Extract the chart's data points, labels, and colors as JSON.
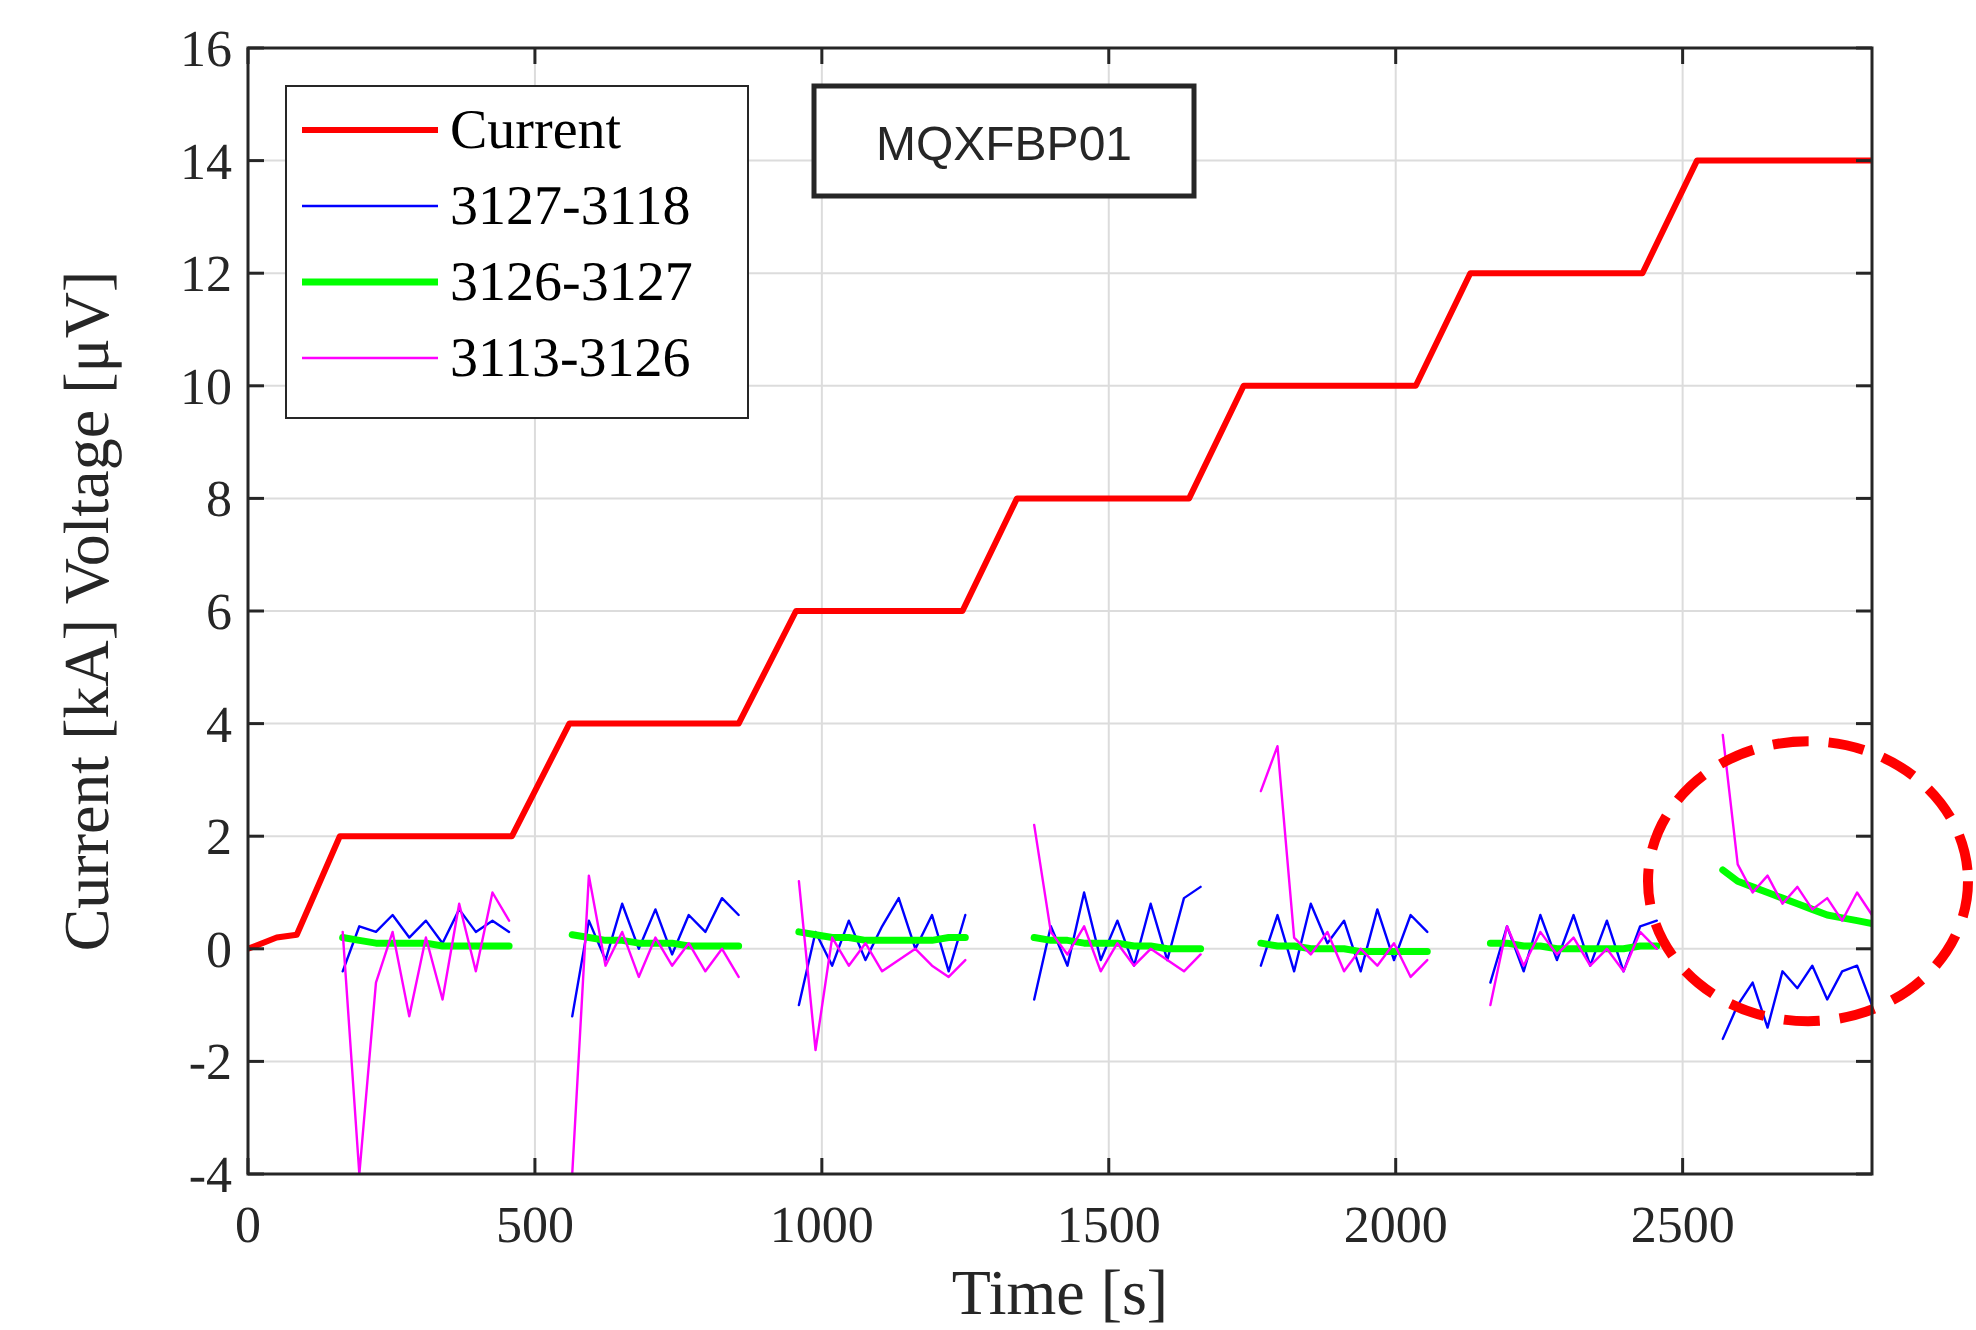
{
  "chart_data": {
    "type": "line",
    "xlabel": "Time [s]",
    "ylabel": "Current [kA] Voltage [μV]",
    "annotations": [
      "MQXFBP01"
    ],
    "xlim": [
      0,
      2830
    ],
    "ylim": [
      -4,
      16
    ],
    "xticks": [
      0,
      500,
      1000,
      1500,
      2000,
      2500
    ],
    "yticks": [
      -4,
      -2,
      0,
      2,
      4,
      6,
      8,
      10,
      12,
      14,
      16
    ],
    "grid": true,
    "legend": "top left",
    "x": [
      165,
      194,
      223,
      252,
      281,
      310,
      339,
      368,
      397,
      426,
      455,
      510,
      565,
      594,
      623,
      652,
      681,
      710,
      739,
      768,
      797,
      826,
      855,
      908,
      960,
      989,
      1018,
      1047,
      1076,
      1105,
      1134,
      1163,
      1192,
      1221,
      1250,
      1310,
      1370,
      1399,
      1428,
      1457,
      1486,
      1515,
      1544,
      1573,
      1602,
      1631,
      1660,
      1712,
      1765,
      1794,
      1823,
      1852,
      1881,
      1910,
      1939,
      1968,
      1997,
      2026,
      2055,
      2110,
      2165,
      2194,
      2223,
      2252,
      2281,
      2310,
      2339,
      2368,
      2397,
      2426,
      2455,
      2512,
      2570,
      2596,
      2622,
      2648,
      2674,
      2700,
      2726,
      2752,
      2778,
      2804,
      2830
    ],
    "series": [
      {
        "name": "Current",
        "color": "#ff0000",
        "x": [
          0,
          50,
          85,
          160,
          460,
          560,
          855,
          955,
          1245,
          1340,
          1640,
          1735,
          2035,
          2130,
          2430,
          2525,
          2830
        ],
        "values": [
          0,
          0.2,
          0.25,
          2,
          2,
          4,
          4,
          6,
          6,
          8,
          8,
          10,
          10,
          12,
          12,
          14,
          14
        ]
      },
      {
        "name": "3127-3118",
        "color": "#0000ff",
        "values": [
          -0.4,
          0.4,
          0.3,
          0.6,
          0.2,
          0.5,
          0.1,
          0.7,
          0.3,
          0.5,
          0.3,
          null,
          -1.2,
          0.5,
          -0.2,
          0.8,
          0.0,
          0.7,
          -0.1,
          0.6,
          0.3,
          0.9,
          0.6,
          null,
          -1.0,
          0.3,
          -0.3,
          0.5,
          -0.2,
          0.4,
          0.9,
          0.0,
          0.6,
          -0.4,
          0.6,
          null,
          -0.9,
          0.4,
          -0.3,
          1.0,
          -0.2,
          0.5,
          -0.3,
          0.8,
          -0.2,
          0.9,
          1.1,
          null,
          -0.3,
          0.6,
          -0.4,
          0.8,
          0.1,
          0.5,
          -0.4,
          0.7,
          -0.2,
          0.6,
          0.3,
          null,
          -0.6,
          0.4,
          -0.4,
          0.6,
          -0.2,
          0.6,
          -0.3,
          0.5,
          -0.4,
          0.4,
          0.5,
          null,
          -1.6,
          -1.0,
          -0.6,
          -1.4,
          -0.4,
          -0.7,
          -0.3,
          -0.9,
          -0.4,
          -0.3,
          -1.0
        ]
      },
      {
        "name": "3126-3127",
        "color": "#00ff00",
        "values": [
          0.2,
          0.15,
          0.1,
          0.1,
          0.1,
          0.1,
          0.05,
          0.05,
          0.05,
          0.05,
          0.05,
          null,
          0.25,
          0.2,
          0.15,
          0.15,
          0.1,
          0.1,
          0.1,
          0.05,
          0.05,
          0.05,
          0.05,
          null,
          0.3,
          0.25,
          0.2,
          0.2,
          0.15,
          0.15,
          0.15,
          0.15,
          0.15,
          0.2,
          0.2,
          null,
          0.2,
          0.15,
          0.15,
          0.1,
          0.1,
          0.1,
          0.05,
          0.05,
          0,
          0,
          0,
          null,
          0.1,
          0.05,
          0.05,
          0,
          0,
          0,
          -0.05,
          -0.05,
          -0.05,
          -0.05,
          -0.05,
          null,
          0.1,
          0.1,
          0.05,
          0.05,
          0,
          0,
          0,
          0,
          0,
          0.05,
          0.05,
          null,
          1.4,
          1.2,
          1.1,
          1.0,
          0.9,
          0.8,
          0.7,
          0.6,
          0.55,
          0.5,
          0.45
        ]
      },
      {
        "name": "3113-3126",
        "color": "#ff00ff",
        "values": [
          0.3,
          -4,
          -0.6,
          0.3,
          -1.2,
          0.2,
          -0.9,
          0.8,
          -0.4,
          1.0,
          0.5,
          null,
          -4,
          1.3,
          -0.3,
          0.3,
          -0.5,
          0.2,
          -0.3,
          0.1,
          -0.4,
          0.0,
          -0.5,
          null,
          1.2,
          -1.8,
          0.2,
          -0.3,
          0.1,
          -0.4,
          -0.2,
          0.0,
          -0.3,
          -0.5,
          -0.2,
          null,
          2.2,
          0.3,
          -0.1,
          0.4,
          -0.4,
          0.1,
          -0.3,
          0.0,
          -0.2,
          -0.4,
          -0.1,
          null,
          2.8,
          3.6,
          0.2,
          -0.1,
          0.3,
          -0.4,
          0.0,
          -0.3,
          0.1,
          -0.5,
          -0.2,
          null,
          -1.0,
          0.4,
          -0.3,
          0.3,
          -0.1,
          0.2,
          -0.3,
          0.0,
          -0.4,
          0.3,
          0.0,
          null,
          3.8,
          1.5,
          1.0,
          1.3,
          0.8,
          1.1,
          0.7,
          0.9,
          0.5,
          1.0,
          0.6
        ]
      }
    ]
  }
}
